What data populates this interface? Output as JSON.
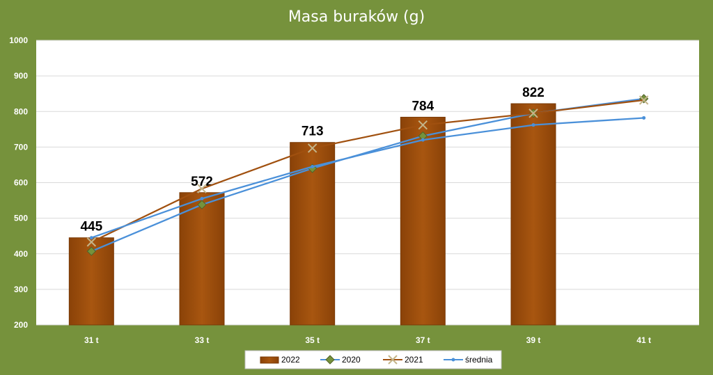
{
  "chart_data": {
    "type": "bar",
    "title": "Masa buraków (g)",
    "xlabel": "",
    "ylabel": "",
    "categories": [
      "31 t",
      "33 t",
      "35 t",
      "37 t",
      "39 t",
      "41 t"
    ],
    "ylim": [
      200,
      1000
    ],
    "yticks": [
      200,
      300,
      400,
      500,
      600,
      700,
      800,
      900,
      1000
    ],
    "grid": true,
    "legend_position": "bottom",
    "series": [
      {
        "name": "2022",
        "type": "bar",
        "color": "#a0500f",
        "values": [
          445,
          572,
          713,
          784,
          822,
          null
        ],
        "data_labels": [
          "445",
          "572",
          "713",
          "784",
          "822"
        ]
      },
      {
        "name": "2020",
        "type": "line",
        "color": "#4a90d9",
        "marker": "diamond",
        "values": [
          407,
          538,
          640,
          731,
          795,
          836
        ]
      },
      {
        "name": "2021",
        "type": "line",
        "color": "#a0500f",
        "marker": "x",
        "values": [
          433,
          583,
          697,
          762,
          795,
          832
        ]
      },
      {
        "name": "średnia",
        "type": "line",
        "color": "#4a90d9",
        "marker": "dot",
        "values": [
          445,
          555,
          645,
          720,
          762,
          782
        ]
      }
    ]
  }
}
